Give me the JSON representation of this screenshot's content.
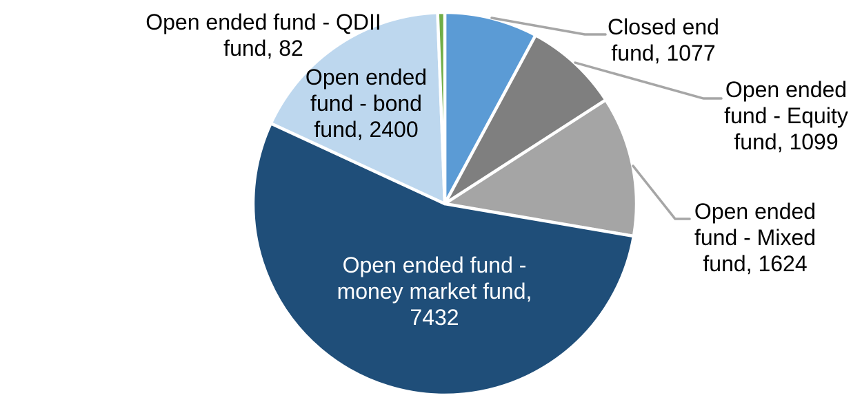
{
  "chart_data": {
    "type": "pie",
    "title": "",
    "legend": "none",
    "background": "#ffffff",
    "slice_border_color": "#ffffff",
    "leader_line_color": "#a6a6a6",
    "total": 13714,
    "start_angle_deg": 0,
    "direction": "clockwise",
    "slices": [
      {
        "name": "Closed end fund",
        "value": 1077,
        "color": "#5b9bd5",
        "label_display": "Closed end\nfund, 1077",
        "label_color": "#000000",
        "label_position": "outside",
        "has_leader_line": true
      },
      {
        "name": "Open ended fund - Equity fund",
        "value": 1099,
        "color": "#7f7f7f",
        "label_display": "Open ended\nfund - Equity\nfund, 1099",
        "label_color": "#000000",
        "label_position": "outside",
        "has_leader_line": true
      },
      {
        "name": "Open ended fund - Mixed fund",
        "value": 1624,
        "color": "#a5a5a5",
        "label_display": "Open ended\nfund - Mixed\nfund, 1624",
        "label_color": "#000000",
        "label_position": "outside",
        "has_leader_line": true
      },
      {
        "name": "Open ended fund - money market fund",
        "value": 7432,
        "color": "#1f4e79",
        "label_display": "Open ended fund -\nmoney market fund,\n7432",
        "label_color": "#ffffff",
        "label_position": "inside",
        "has_leader_line": false
      },
      {
        "name": "Open ended fund - bond fund",
        "value": 2400,
        "color": "#bdd7ee",
        "label_display": "Open ended\nfund - bond\nfund, 2400",
        "label_color": "#000000",
        "label_position": "inside",
        "has_leader_line": false
      },
      {
        "name": "Open ended fund - QDII fund",
        "value": 82,
        "color": "#70ad47",
        "label_display": "Open ended fund - QDII\nfund, 82",
        "label_color": "#000000",
        "label_position": "outside",
        "has_leader_line": false
      }
    ]
  }
}
